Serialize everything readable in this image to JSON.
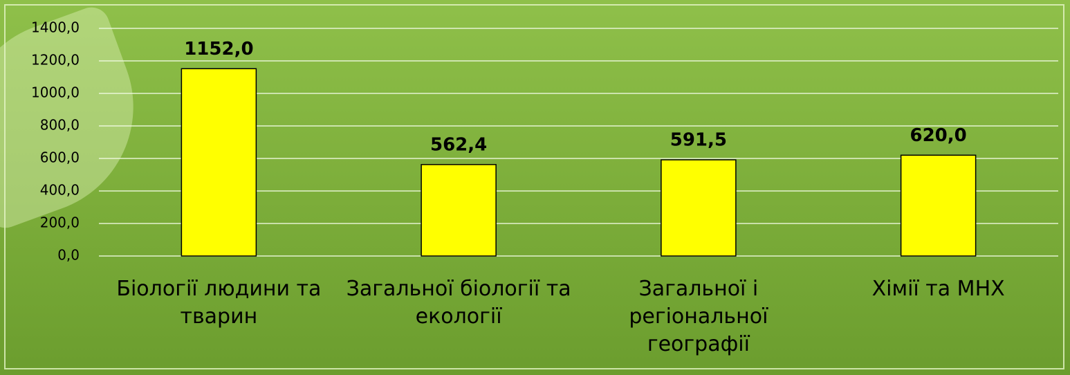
{
  "chart_data": {
    "type": "bar",
    "categories": [
      "Біології людини та тварин",
      "Загальної біології та екології",
      "Загальної і регіональної географії",
      "Хімії та МНХ"
    ],
    "values": [
      1152.0,
      562.4,
      591.5,
      620.0
    ],
    "value_labels": [
      "1152,0",
      "562,4",
      "591,5",
      "620,0"
    ],
    "color": "#ffff00",
    "ylim": [
      0,
      1400
    ],
    "yticks": [
      {
        "value": 0,
        "label": "0,0"
      },
      {
        "value": 200,
        "label": "200,0"
      },
      {
        "value": 400,
        "label": "400,0"
      },
      {
        "value": 600,
        "label": "600,0"
      },
      {
        "value": 800,
        "label": "800,0"
      },
      {
        "value": 1000,
        "label": "1000,0"
      },
      {
        "value": 1200,
        "label": "1200,0"
      },
      {
        "value": 1400,
        "label": "1400,0"
      }
    ],
    "grid": true
  }
}
